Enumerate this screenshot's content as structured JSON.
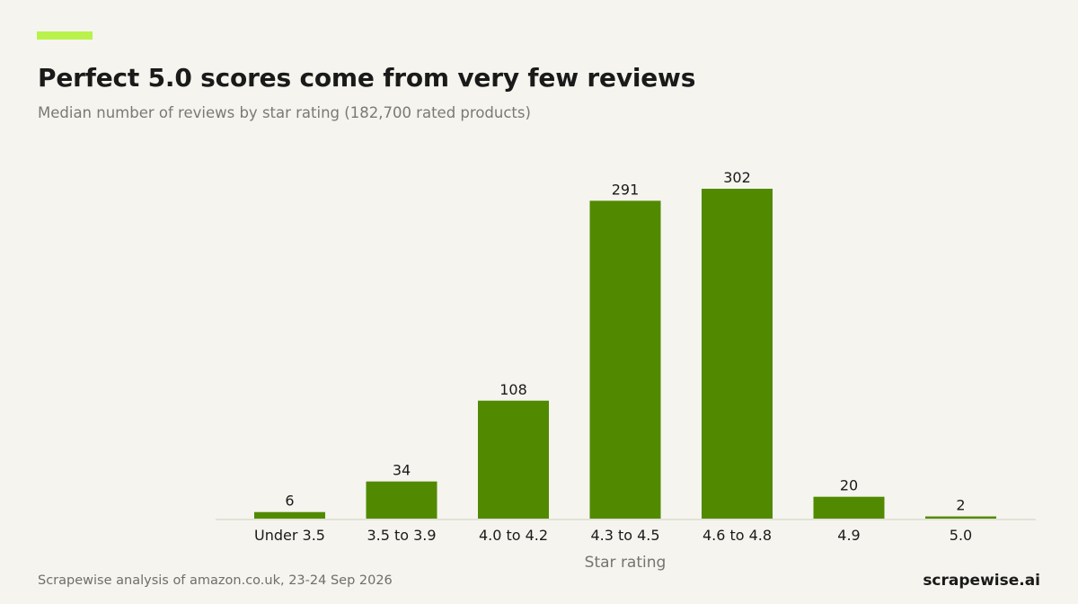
{
  "header": {
    "title": "Perfect 5.0 scores come from very few reviews",
    "subtitle": "Median number of reviews by star rating (182,700 rated products)"
  },
  "footer": {
    "source": "Scrapewise analysis of amazon.co.uk, 23-24 Sep 2026",
    "brand": "scrapewise.ai"
  },
  "colors": {
    "bar": "#518a00",
    "accent": "#b8f24a",
    "background": "#f5f4ee",
    "baseline": "#dcdcd0"
  },
  "chart_data": {
    "type": "bar",
    "categories": [
      "Under 3.5",
      "3.5 to 3.9",
      "4.0 to 4.2",
      "4.3 to 4.5",
      "4.6 to 4.8",
      "4.9",
      "5.0"
    ],
    "values": [
      6,
      34,
      108,
      291,
      302,
      20,
      2
    ],
    "xlabel": "Star rating",
    "ylabel": "",
    "ylim": [
      0,
      315
    ],
    "grid": false,
    "legend": "none"
  }
}
